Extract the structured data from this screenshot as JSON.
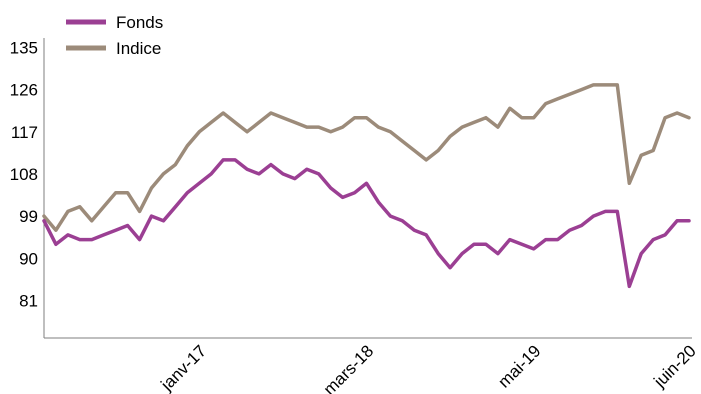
{
  "chart_data": {
    "type": "line",
    "title": "",
    "xlabel": "",
    "ylabel": "",
    "x_tick_labels": [
      "janv-17",
      "mars-18",
      "mai-19",
      "juin-20"
    ],
    "y_tick_labels": [
      "81",
      "90",
      "99",
      "108",
      "117",
      "126",
      "135"
    ],
    "y_ticks": [
      81,
      90,
      99,
      108,
      117,
      126,
      135
    ],
    "ylim": [
      73,
      137
    ],
    "x_range": [
      "2015-12",
      "2020-06"
    ],
    "grid": false,
    "legend_position": "top-left",
    "x_dates": [
      "2015-12",
      "2016-01",
      "2016-02",
      "2016-03",
      "2016-04",
      "2016-05",
      "2016-06",
      "2016-07",
      "2016-08",
      "2016-09",
      "2016-10",
      "2016-11",
      "2016-12",
      "2017-01",
      "2017-02",
      "2017-03",
      "2017-04",
      "2017-05",
      "2017-06",
      "2017-07",
      "2017-08",
      "2017-09",
      "2017-10",
      "2017-11",
      "2017-12",
      "2018-01",
      "2018-02",
      "2018-03",
      "2018-04",
      "2018-05",
      "2018-06",
      "2018-07",
      "2018-08",
      "2018-09",
      "2018-10",
      "2018-11",
      "2018-12",
      "2019-01",
      "2019-02",
      "2019-03",
      "2019-04",
      "2019-05",
      "2019-06",
      "2019-07",
      "2019-08",
      "2019-09",
      "2019-10",
      "2019-11",
      "2019-12",
      "2020-01",
      "2020-02",
      "2020-03",
      "2020-04",
      "2020-05",
      "2020-06"
    ],
    "series": [
      {
        "name": "Fonds",
        "color": "#9b3f93",
        "values": [
          98,
          93,
          95,
          94,
          94,
          95,
          96,
          97,
          94,
          99,
          98,
          101,
          104,
          106,
          108,
          111,
          111,
          109,
          108,
          110,
          108,
          107,
          109,
          108,
          105,
          103,
          104,
          106,
          102,
          99,
          98,
          96,
          95,
          91,
          88,
          91,
          93,
          93,
          91,
          94,
          93,
          92,
          94,
          94,
          96,
          97,
          99,
          100,
          100,
          84,
          91,
          94,
          95,
          98,
          98
        ]
      },
      {
        "name": "Indice",
        "color": "#9c8b7a",
        "values": [
          99,
          96,
          100,
          101,
          98,
          101,
          104,
          104,
          100,
          105,
          108,
          110,
          114,
          117,
          119,
          121,
          119,
          117,
          119,
          121,
          120,
          119,
          118,
          118,
          117,
          118,
          120,
          120,
          118,
          117,
          115,
          113,
          111,
          113,
          116,
          118,
          119,
          120,
          118,
          122,
          120,
          120,
          123,
          124,
          125,
          126,
          127,
          127,
          127,
          106,
          112,
          113,
          120,
          121,
          120
        ]
      }
    ]
  }
}
